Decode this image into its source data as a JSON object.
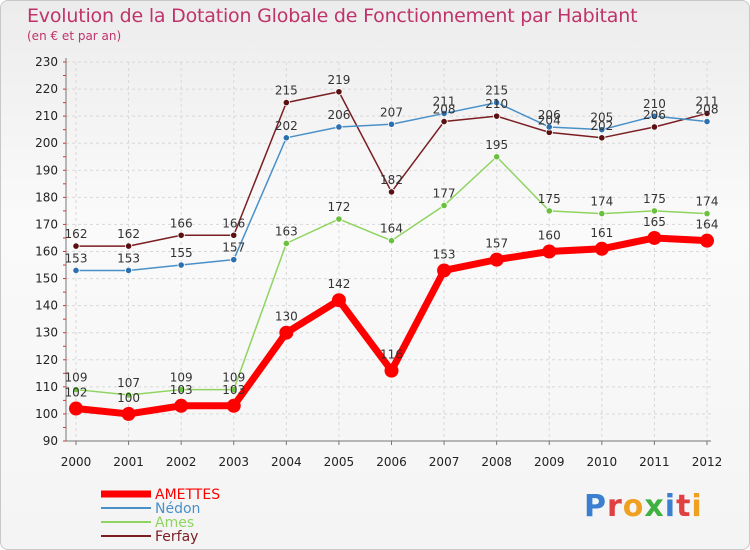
{
  "chart_data": {
    "type": "line",
    "title": "Evolution de la Dotation Globale de Fonctionnement par Habitant",
    "subtitle": "(en € et par an)",
    "x": [
      "2000",
      "2001",
      "2002",
      "2003",
      "2004",
      "2005",
      "2006",
      "2007",
      "2008",
      "2009",
      "2010",
      "2011",
      "2012"
    ],
    "ylim": [
      90,
      230
    ],
    "yticks": [
      90,
      100,
      110,
      120,
      130,
      140,
      150,
      160,
      170,
      180,
      190,
      200,
      210,
      220,
      230
    ],
    "grid": true,
    "legend_position": "bottom-left",
    "series": [
      {
        "name": "Ferfay",
        "color": "#7a1e23",
        "values": [
          162,
          162,
          166,
          166,
          215,
          219,
          182,
          208,
          210,
          204,
          202,
          206,
          211
        ]
      },
      {
        "name": "Ames",
        "color": "#8fd460",
        "values": [
          109,
          107,
          109,
          109,
          163,
          172,
          164,
          177,
          195,
          175,
          174,
          175,
          174
        ]
      },
      {
        "name": "Nédon",
        "color": "#4a90c8",
        "values": [
          153,
          153,
          155,
          157,
          202,
          206,
          207,
          211,
          215,
          206,
          205,
          210,
          208
        ]
      },
      {
        "name": "AMETTES",
        "color": "#ff0000",
        "values": [
          102,
          100,
          103,
          103,
          130,
          142,
          116,
          153,
          157,
          160,
          161,
          165,
          164
        ]
      }
    ]
  },
  "legend": [
    "AMETTES",
    "Nédon",
    "Ames",
    "Ferfay"
  ],
  "logo": {
    "letters": [
      "P",
      "r",
      "o",
      "x",
      "i",
      "t",
      "i"
    ],
    "colors": [
      "#3a7fd0",
      "#e04040",
      "#f0a020",
      "#40b040",
      "#3a7fd0",
      "#e04040",
      "#f0a020"
    ]
  }
}
